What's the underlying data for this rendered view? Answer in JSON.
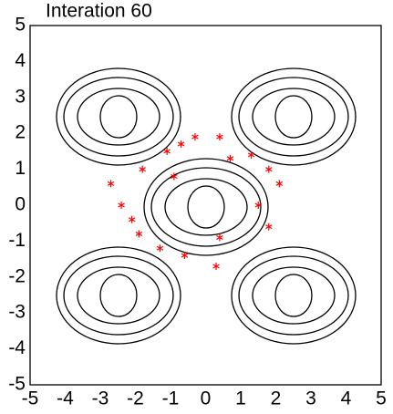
{
  "chart_data": {
    "type": "scatter",
    "title": "Interation 60",
    "x": [
      -0.3,
      0.4,
      -0.7,
      -1.1,
      -1.8,
      0.7,
      1.3,
      1.8,
      2.1,
      -0.9,
      -2.7,
      -2.4,
      -2.1,
      -1.9,
      1.5,
      1.8,
      0.4,
      -1.3,
      -0.6,
      0.3
    ],
    "y": [
      1.9,
      1.9,
      1.7,
      1.5,
      1.0,
      1.3,
      1.4,
      1.0,
      0.6,
      0.8,
      0.6,
      0.0,
      -0.4,
      -0.8,
      0.0,
      -0.6,
      -0.9,
      -1.2,
      -1.4,
      -1.7
    ],
    "color": "#ff0000",
    "xlim": [
      -5,
      5
    ],
    "ylim": [
      -5,
      5
    ],
    "xticks": [
      -5,
      -4,
      -3,
      -2,
      -1,
      0,
      1,
      2,
      3,
      4,
      5
    ],
    "yticks": [
      -5,
      -4,
      -3,
      -2,
      -1,
      0,
      1,
      2,
      3,
      4,
      5
    ]
  }
}
